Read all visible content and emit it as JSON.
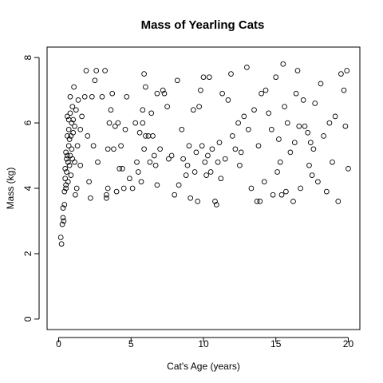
{
  "chart_data": {
    "type": "scatter",
    "title": "Mass of Yearling Cats",
    "xlabel": "Cat's Age (years)",
    "ylabel": "Mass (kg)",
    "xlim": [
      -0.8,
      20.8
    ],
    "ylim": [
      -0.32,
      8.32
    ],
    "xticks": [
      0,
      5,
      10,
      15,
      20
    ],
    "yticks": [
      0,
      2,
      4,
      6,
      8
    ],
    "grid": false,
    "legend": "none",
    "points": [
      [
        0.15,
        2.5
      ],
      [
        0.2,
        2.3
      ],
      [
        0.25,
        2.9
      ],
      [
        0.3,
        3.1
      ],
      [
        0.3,
        3.4
      ],
      [
        0.35,
        3.0
      ],
      [
        0.4,
        3.5
      ],
      [
        0.4,
        3.9
      ],
      [
        0.45,
        4.3
      ],
      [
        0.45,
        4.6
      ],
      [
        0.5,
        4.1
      ],
      [
        0.5,
        5.1
      ],
      [
        0.5,
        4.0
      ],
      [
        0.55,
        4.5
      ],
      [
        0.55,
        4.9
      ],
      [
        0.6,
        5.0
      ],
      [
        0.6,
        5.6
      ],
      [
        0.6,
        6.2
      ],
      [
        0.65,
        4.2
      ],
      [
        0.65,
        4.8
      ],
      [
        0.7,
        5.3
      ],
      [
        0.7,
        5.8
      ],
      [
        0.7,
        6.1
      ],
      [
        0.75,
        4.7
      ],
      [
        0.75,
        5.5
      ],
      [
        0.8,
        5.0
      ],
      [
        0.8,
        6.3
      ],
      [
        0.8,
        6.8
      ],
      [
        0.85,
        4.4
      ],
      [
        0.85,
        5.6
      ],
      [
        0.9,
        5.2
      ],
      [
        0.9,
        6.0
      ],
      [
        0.95,
        4.9
      ],
      [
        0.95,
        6.5
      ],
      [
        1.0,
        5.7
      ],
      [
        1.0,
        6.1
      ],
      [
        1.05,
        7.1
      ],
      [
        1.1,
        4.8
      ],
      [
        1.1,
        5.9
      ],
      [
        1.15,
        3.8
      ],
      [
        1.2,
        6.4
      ],
      [
        1.25,
        4.0
      ],
      [
        1.3,
        5.3
      ],
      [
        1.35,
        6.7
      ],
      [
        1.5,
        5.8
      ],
      [
        1.5,
        4.7
      ],
      [
        1.6,
        6.2
      ],
      [
        1.8,
        6.8
      ],
      [
        1.9,
        7.6
      ],
      [
        2.0,
        5.6
      ],
      [
        2.1,
        4.2
      ],
      [
        2.2,
        3.7
      ],
      [
        2.3,
        6.8
      ],
      [
        2.4,
        5.3
      ],
      [
        2.5,
        7.3
      ],
      [
        2.6,
        7.6
      ],
      [
        2.7,
        4.8
      ],
      [
        3.0,
        6.8
      ],
      [
        3.2,
        7.6
      ],
      [
        3.3,
        3.7
      ],
      [
        3.3,
        3.8
      ],
      [
        3.4,
        4.0
      ],
      [
        3.4,
        5.2
      ],
      [
        3.5,
        6.0
      ],
      [
        3.6,
        6.4
      ],
      [
        3.7,
        6.9
      ],
      [
        3.8,
        5.2
      ],
      [
        3.9,
        5.9
      ],
      [
        4.0,
        3.9
      ],
      [
        4.1,
        6.0
      ],
      [
        4.2,
        4.6
      ],
      [
        4.3,
        5.3
      ],
      [
        4.4,
        4.6
      ],
      [
        4.5,
        4.0
      ],
      [
        4.6,
        5.8
      ],
      [
        4.7,
        6.8
      ],
      [
        4.9,
        4.3
      ],
      [
        5.1,
        4.0
      ],
      [
        5.3,
        6.0
      ],
      [
        5.4,
        4.8
      ],
      [
        5.5,
        4.5
      ],
      [
        5.6,
        5.7
      ],
      [
        5.7,
        4.2
      ],
      [
        5.8,
        6.4
      ],
      [
        5.8,
        6.0
      ],
      [
        5.9,
        7.5
      ],
      [
        5.9,
        5.2
      ],
      [
        6.0,
        7.1
      ],
      [
        6.0,
        5.6
      ],
      [
        6.2,
        5.6
      ],
      [
        6.3,
        4.8
      ],
      [
        6.4,
        6.3
      ],
      [
        6.5,
        5.6
      ],
      [
        6.6,
        5.0
      ],
      [
        6.7,
        4.7
      ],
      [
        6.8,
        4.1
      ],
      [
        6.8,
        6.9
      ],
      [
        7.0,
        5.2
      ],
      [
        7.2,
        7.0
      ],
      [
        7.3,
        6.9
      ],
      [
        7.5,
        6.5
      ],
      [
        7.6,
        4.9
      ],
      [
        7.8,
        5.0
      ],
      [
        8.0,
        3.8
      ],
      [
        8.2,
        7.3
      ],
      [
        8.3,
        4.1
      ],
      [
        8.5,
        5.8
      ],
      [
        8.6,
        4.9
      ],
      [
        8.8,
        4.4
      ],
      [
        8.9,
        4.7
      ],
      [
        9.0,
        5.3
      ],
      [
        9.1,
        3.7
      ],
      [
        9.3,
        6.4
      ],
      [
        9.4,
        4.5
      ],
      [
        9.5,
        5.1
      ],
      [
        9.6,
        3.6
      ],
      [
        9.7,
        6.5
      ],
      [
        9.8,
        7.0
      ],
      [
        9.9,
        5.3
      ],
      [
        10.0,
        7.4
      ],
      [
        10.1,
        4.8
      ],
      [
        10.2,
        4.4
      ],
      [
        10.3,
        5.0
      ],
      [
        10.4,
        7.4
      ],
      [
        10.5,
        4.5
      ],
      [
        10.6,
        5.2
      ],
      [
        10.8,
        3.6
      ],
      [
        10.9,
        3.5
      ],
      [
        11.0,
        4.8
      ],
      [
        11.1,
        5.4
      ],
      [
        11.2,
        4.3
      ],
      [
        11.3,
        6.9
      ],
      [
        11.5,
        4.9
      ],
      [
        11.7,
        6.7
      ],
      [
        11.9,
        7.5
      ],
      [
        12.0,
        5.6
      ],
      [
        12.2,
        5.2
      ],
      [
        12.4,
        6.0
      ],
      [
        12.5,
        4.7
      ],
      [
        12.6,
        5.1
      ],
      [
        12.8,
        6.2
      ],
      [
        13.0,
        7.7
      ],
      [
        13.1,
        5.8
      ],
      [
        13.3,
        4.0
      ],
      [
        13.5,
        6.4
      ],
      [
        13.7,
        3.6
      ],
      [
        13.8,
        5.3
      ],
      [
        13.9,
        3.6
      ],
      [
        14.0,
        6.9
      ],
      [
        14.2,
        4.2
      ],
      [
        14.3,
        7.0
      ],
      [
        14.5,
        6.3
      ],
      [
        14.7,
        5.8
      ],
      [
        14.8,
        3.8
      ],
      [
        15.0,
        7.4
      ],
      [
        15.1,
        4.5
      ],
      [
        15.2,
        5.5
      ],
      [
        15.3,
        4.8
      ],
      [
        15.4,
        3.8
      ],
      [
        15.5,
        7.8
      ],
      [
        15.6,
        6.5
      ],
      [
        15.7,
        3.9
      ],
      [
        15.8,
        6.0
      ],
      [
        16.0,
        5.1
      ],
      [
        16.2,
        3.6
      ],
      [
        16.3,
        5.4
      ],
      [
        16.4,
        6.9
      ],
      [
        16.5,
        7.6
      ],
      [
        16.6,
        5.9
      ],
      [
        16.7,
        4.0
      ],
      [
        16.9,
        6.7
      ],
      [
        17.0,
        5.9
      ],
      [
        17.2,
        5.7
      ],
      [
        17.3,
        4.7
      ],
      [
        17.4,
        5.4
      ],
      [
        17.5,
        4.4
      ],
      [
        17.6,
        5.2
      ],
      [
        17.7,
        6.6
      ],
      [
        17.9,
        4.2
      ],
      [
        18.1,
        7.2
      ],
      [
        18.3,
        5.6
      ],
      [
        18.5,
        3.9
      ],
      [
        18.7,
        6.0
      ],
      [
        18.9,
        4.8
      ],
      [
        19.1,
        6.2
      ],
      [
        19.3,
        3.6
      ],
      [
        19.5,
        7.5
      ],
      [
        19.7,
        7.0
      ],
      [
        19.8,
        5.9
      ],
      [
        19.9,
        7.6
      ],
      [
        20.0,
        4.6
      ]
    ]
  }
}
